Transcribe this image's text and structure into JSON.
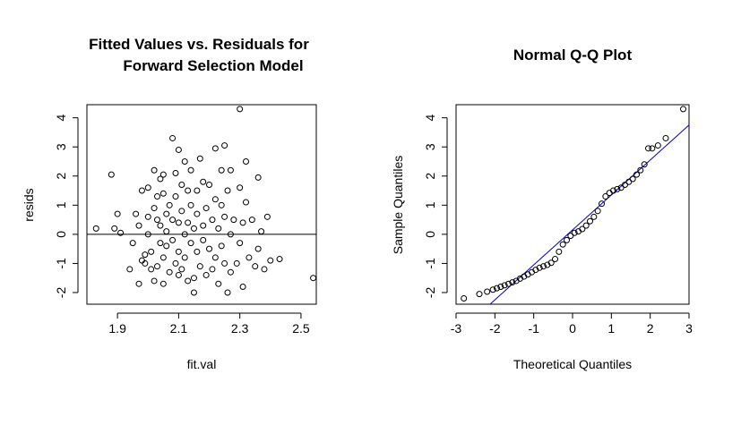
{
  "chart_data": [
    {
      "type": "scatter",
      "title_lines": [
        "Fitted Values vs. Residuals for",
        "Forward Selection Model"
      ],
      "xlabel": "fit.val",
      "ylabel": "resids",
      "xlim": [
        1.8,
        2.55
      ],
      "ylim": [
        -2.4,
        4.45
      ],
      "xticks": [
        1.9,
        2.1,
        2.3,
        2.5
      ],
      "yticks": [
        -2,
        -1,
        0,
        1,
        2,
        3,
        4
      ],
      "hline": 0,
      "grid": false,
      "series": [
        {
          "points": [
            [
              1.83,
              0.2
            ],
            [
              1.88,
              2.05
            ],
            [
              1.89,
              0.2
            ],
            [
              1.9,
              0.7
            ],
            [
              1.91,
              0.05
            ],
            [
              1.94,
              -1.2
            ],
            [
              1.95,
              -0.3
            ],
            [
              1.96,
              0.7
            ],
            [
              1.97,
              0.3
            ],
            [
              1.97,
              -1.7
            ],
            [
              1.98,
              1.5
            ],
            [
              1.98,
              -0.9
            ],
            [
              1.99,
              -1.0
            ],
            [
              1.99,
              -0.7
            ],
            [
              2.0,
              1.6
            ],
            [
              2.0,
              0.6
            ],
            [
              2.0,
              0.0
            ],
            [
              2.01,
              -1.2
            ],
            [
              2.01,
              -0.6
            ],
            [
              2.02,
              2.2
            ],
            [
              2.02,
              0.9
            ],
            [
              2.02,
              -1.6
            ],
            [
              2.03,
              1.3
            ],
            [
              2.03,
              0.5
            ],
            [
              2.03,
              -1.1
            ],
            [
              2.04,
              1.9
            ],
            [
              2.04,
              0.3
            ],
            [
              2.04,
              -0.3
            ],
            [
              2.05,
              2.05
            ],
            [
              2.05,
              1.4
            ],
            [
              2.05,
              -0.8
            ],
            [
              2.05,
              -1.7
            ],
            [
              2.06,
              0.7
            ],
            [
              2.06,
              0.1
            ],
            [
              2.06,
              -0.4
            ],
            [
              2.07,
              1.0
            ],
            [
              2.07,
              -1.3
            ],
            [
              2.08,
              3.3
            ],
            [
              2.08,
              0.5
            ],
            [
              2.08,
              -0.2
            ],
            [
              2.09,
              2.1
            ],
            [
              2.09,
              1.3
            ],
            [
              2.09,
              -1.0
            ],
            [
              2.1,
              2.9
            ],
            [
              2.1,
              0.4
            ],
            [
              2.1,
              -0.6
            ],
            [
              2.1,
              -1.4
            ],
            [
              2.11,
              1.7
            ],
            [
              2.11,
              0.8
            ],
            [
              2.11,
              -1.2
            ],
            [
              2.12,
              2.5
            ],
            [
              2.12,
              0.0
            ],
            [
              2.12,
              -0.8
            ],
            [
              2.13,
              1.5
            ],
            [
              2.13,
              0.4
            ],
            [
              2.13,
              -1.6
            ],
            [
              2.14,
              2.2
            ],
            [
              2.14,
              1.0
            ],
            [
              2.14,
              -0.3
            ],
            [
              2.15,
              0.2
            ],
            [
              2.15,
              -1.5
            ],
            [
              2.15,
              -2.0
            ],
            [
              2.16,
              1.5
            ],
            [
              2.16,
              0.7
            ],
            [
              2.16,
              -0.6
            ],
            [
              2.17,
              2.6
            ],
            [
              2.17,
              -1.1
            ],
            [
              2.18,
              1.8
            ],
            [
              2.18,
              0.3
            ],
            [
              2.18,
              -0.2
            ],
            [
              2.19,
              0.9
            ],
            [
              2.19,
              -1.4
            ],
            [
              2.2,
              1.7
            ],
            [
              2.2,
              -0.5
            ],
            [
              2.21,
              0.5
            ],
            [
              2.21,
              -1.2
            ],
            [
              2.22,
              2.95
            ],
            [
              2.22,
              1.2
            ],
            [
              2.22,
              -0.8
            ],
            [
              2.23,
              0.2
            ],
            [
              2.23,
              -1.7
            ],
            [
              2.24,
              2.2
            ],
            [
              2.24,
              1.0
            ],
            [
              2.24,
              -0.4
            ],
            [
              2.25,
              3.05
            ],
            [
              2.25,
              0.6
            ],
            [
              2.25,
              -1.0
            ],
            [
              2.26,
              1.5
            ],
            [
              2.26,
              -2.0
            ],
            [
              2.27,
              2.2
            ],
            [
              2.27,
              0.0
            ],
            [
              2.27,
              -1.3
            ],
            [
              2.28,
              0.5
            ],
            [
              2.29,
              -1.0
            ],
            [
              2.3,
              4.3
            ],
            [
              2.3,
              1.6
            ],
            [
              2.3,
              -0.3
            ],
            [
              2.31,
              0.4
            ],
            [
              2.31,
              -1.8
            ],
            [
              2.32,
              2.5
            ],
            [
              2.32,
              1.1
            ],
            [
              2.33,
              -0.8
            ],
            [
              2.34,
              0.5
            ],
            [
              2.35,
              -1.1
            ],
            [
              2.36,
              1.95
            ],
            [
              2.36,
              -0.5
            ],
            [
              2.37,
              0.1
            ],
            [
              2.38,
              -1.2
            ],
            [
              2.39,
              0.6
            ],
            [
              2.4,
              -0.9
            ],
            [
              2.43,
              -0.85
            ],
            [
              2.54,
              -1.5
            ]
          ]
        }
      ]
    },
    {
      "type": "scatter",
      "title_lines": [
        "Normal Q-Q Plot"
      ],
      "xlabel": "Theoretical Quantiles",
      "ylabel": "Sample Quantiles",
      "xlim": [
        -3.0,
        3.0
      ],
      "ylim": [
        -2.4,
        4.45
      ],
      "xticks": [
        -3,
        -2,
        -1,
        0,
        1,
        2,
        3
      ],
      "yticks": [
        -2,
        -1,
        0,
        1,
        2,
        3,
        4
      ],
      "grid": false,
      "reference_line": {
        "intercept": 0.15,
        "slope": 1.2,
        "color": "#0000cc"
      },
      "series": [
        {
          "points": [
            [
              -2.8,
              -2.2
            ],
            [
              -2.4,
              -2.05
            ],
            [
              -2.2,
              -1.97
            ],
            [
              -2.05,
              -1.9
            ],
            [
              -1.95,
              -1.85
            ],
            [
              -1.85,
              -1.8
            ],
            [
              -1.75,
              -1.75
            ],
            [
              -1.65,
              -1.7
            ],
            [
              -1.55,
              -1.65
            ],
            [
              -1.45,
              -1.6
            ],
            [
              -1.35,
              -1.52
            ],
            [
              -1.25,
              -1.45
            ],
            [
              -1.15,
              -1.38
            ],
            [
              -1.05,
              -1.3
            ],
            [
              -0.95,
              -1.22
            ],
            [
              -0.85,
              -1.15
            ],
            [
              -0.75,
              -1.1
            ],
            [
              -0.65,
              -1.05
            ],
            [
              -0.55,
              -0.98
            ],
            [
              -0.45,
              -0.85
            ],
            [
              -0.35,
              -0.6
            ],
            [
              -0.25,
              -0.35
            ],
            [
              -0.15,
              -0.2
            ],
            [
              -0.05,
              -0.05
            ],
            [
              0.05,
              0.05
            ],
            [
              0.15,
              0.1
            ],
            [
              0.25,
              0.18
            ],
            [
              0.35,
              0.3
            ],
            [
              0.45,
              0.45
            ],
            [
              0.55,
              0.6
            ],
            [
              0.65,
              0.8
            ],
            [
              0.75,
              1.05
            ],
            [
              0.85,
              1.3
            ],
            [
              0.95,
              1.42
            ],
            [
              1.05,
              1.5
            ],
            [
              1.15,
              1.55
            ],
            [
              1.25,
              1.6
            ],
            [
              1.35,
              1.7
            ],
            [
              1.45,
              1.8
            ],
            [
              1.55,
              1.9
            ],
            [
              1.65,
              2.05
            ],
            [
              1.75,
              2.2
            ],
            [
              1.85,
              2.4
            ],
            [
              1.95,
              2.95
            ],
            [
              2.05,
              2.95
            ],
            [
              2.2,
              3.05
            ],
            [
              2.4,
              3.3
            ],
            [
              2.85,
              4.3
            ]
          ]
        }
      ]
    }
  ]
}
